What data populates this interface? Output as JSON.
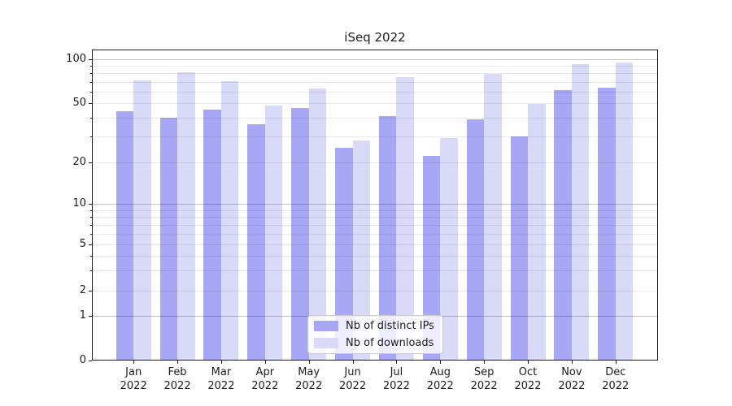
{
  "title": "iSeq 2022",
  "chart_data": {
    "type": "bar",
    "title": "iSeq 2022",
    "categories": [
      "Jan",
      "Feb",
      "Mar",
      "Apr",
      "May",
      "Jun",
      "Jul",
      "Aug",
      "Sep",
      "Oct",
      "Nov",
      "Dec"
    ],
    "category_year": "2022",
    "series": [
      {
        "name": "Nb of distinct IPs",
        "color": "#a7a7f6",
        "values": [
          44,
          40,
          45,
          36,
          46,
          25,
          41,
          22,
          39,
          30,
          61,
          64
        ]
      },
      {
        "name": "Nb of downloads",
        "color": "#d9d9f8",
        "values": [
          72,
          82,
          71,
          48,
          63,
          28,
          75,
          29,
          79,
          49,
          93,
          95
        ]
      }
    ],
    "yscale": "symlog",
    "ylim": [
      0,
      117
    ],
    "yticks_labeled": [
      0,
      1,
      2,
      5,
      10,
      20,
      50,
      100
    ],
    "ygrid_major": [
      1,
      10,
      100
    ],
    "ygrid_minor": [
      2,
      3,
      4,
      5,
      6,
      7,
      8,
      9,
      20,
      30,
      40,
      50,
      60,
      70,
      80,
      90
    ],
    "grid": "horizontal major+minor, drawn above bars",
    "legend_position": "lower center"
  },
  "colors": {
    "background": "#ffffff",
    "bar_distinct_ips": "#a7a7f6",
    "bar_downloads": "#d9d9f8",
    "axis_text": "#1c1c1c",
    "spine": "#1c1c1c",
    "legend_border": "#cccccc"
  }
}
